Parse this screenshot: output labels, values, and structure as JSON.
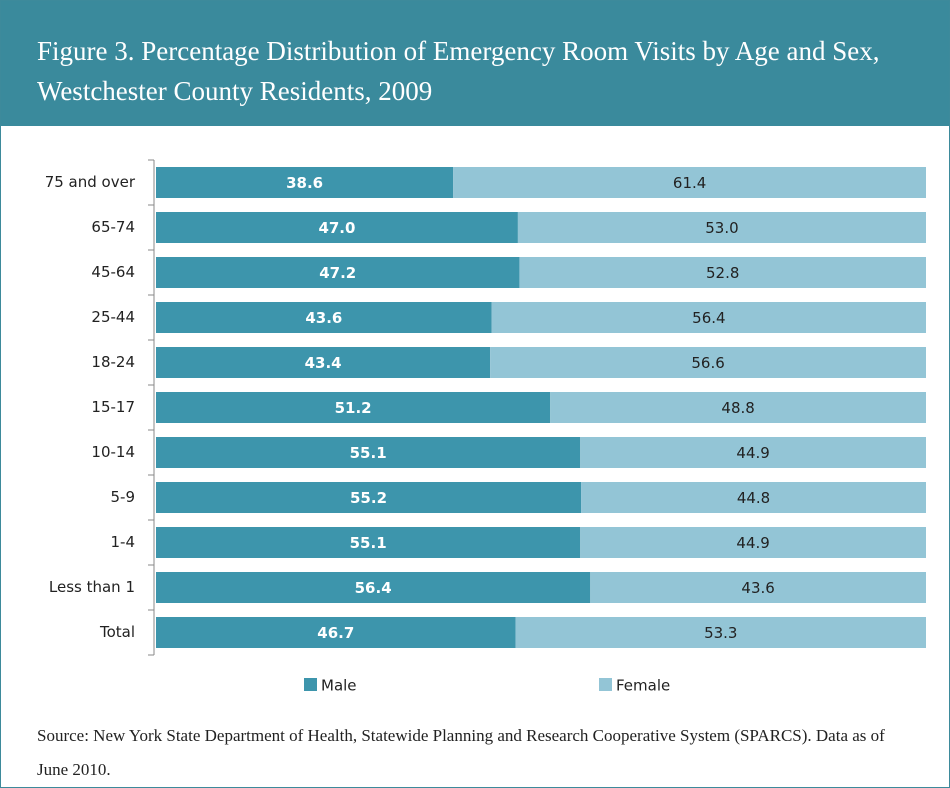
{
  "chart_data": {
    "type": "stacked-bar-horizontal",
    "title": "Figure 3.  Percentage Distribution of Emergency Room Visits by Age and Sex, Westchester County Residents, 2009",
    "categories": [
      "75 and over",
      "65-74",
      "45-64",
      "25-44",
      "18-24",
      "15-17",
      "10-14",
      "5-9",
      "1-4",
      "Less than 1",
      "Total"
    ],
    "series": [
      {
        "name": "Male",
        "color": "#3d95ac",
        "values": [
          38.6,
          47.0,
          47.2,
          43.6,
          43.4,
          51.2,
          55.1,
          55.2,
          55.1,
          56.4,
          46.7
        ],
        "value_labels": [
          "38.6",
          "47.0",
          "47.2",
          "43.6",
          "43.4",
          "51.2",
          "55.1",
          "55.2",
          "55.1",
          "56.4",
          "46.7"
        ]
      },
      {
        "name": "Female",
        "color": "#93c5d6",
        "values": [
          61.4,
          53.0,
          52.8,
          56.4,
          56.6,
          48.8,
          44.9,
          44.8,
          44.9,
          43.6,
          53.3
        ],
        "value_labels": [
          "61.4",
          "53.0",
          "52.8",
          "56.4",
          "56.6",
          "48.8",
          "44.9",
          "44.8",
          "44.9",
          "43.6",
          "53.3"
        ]
      }
    ],
    "legend": "bottom",
    "source": "Source:  New York State Department of Health, Statewide Planning and Research Cooperative System (SPARCS).  Data as of June 2010."
  }
}
